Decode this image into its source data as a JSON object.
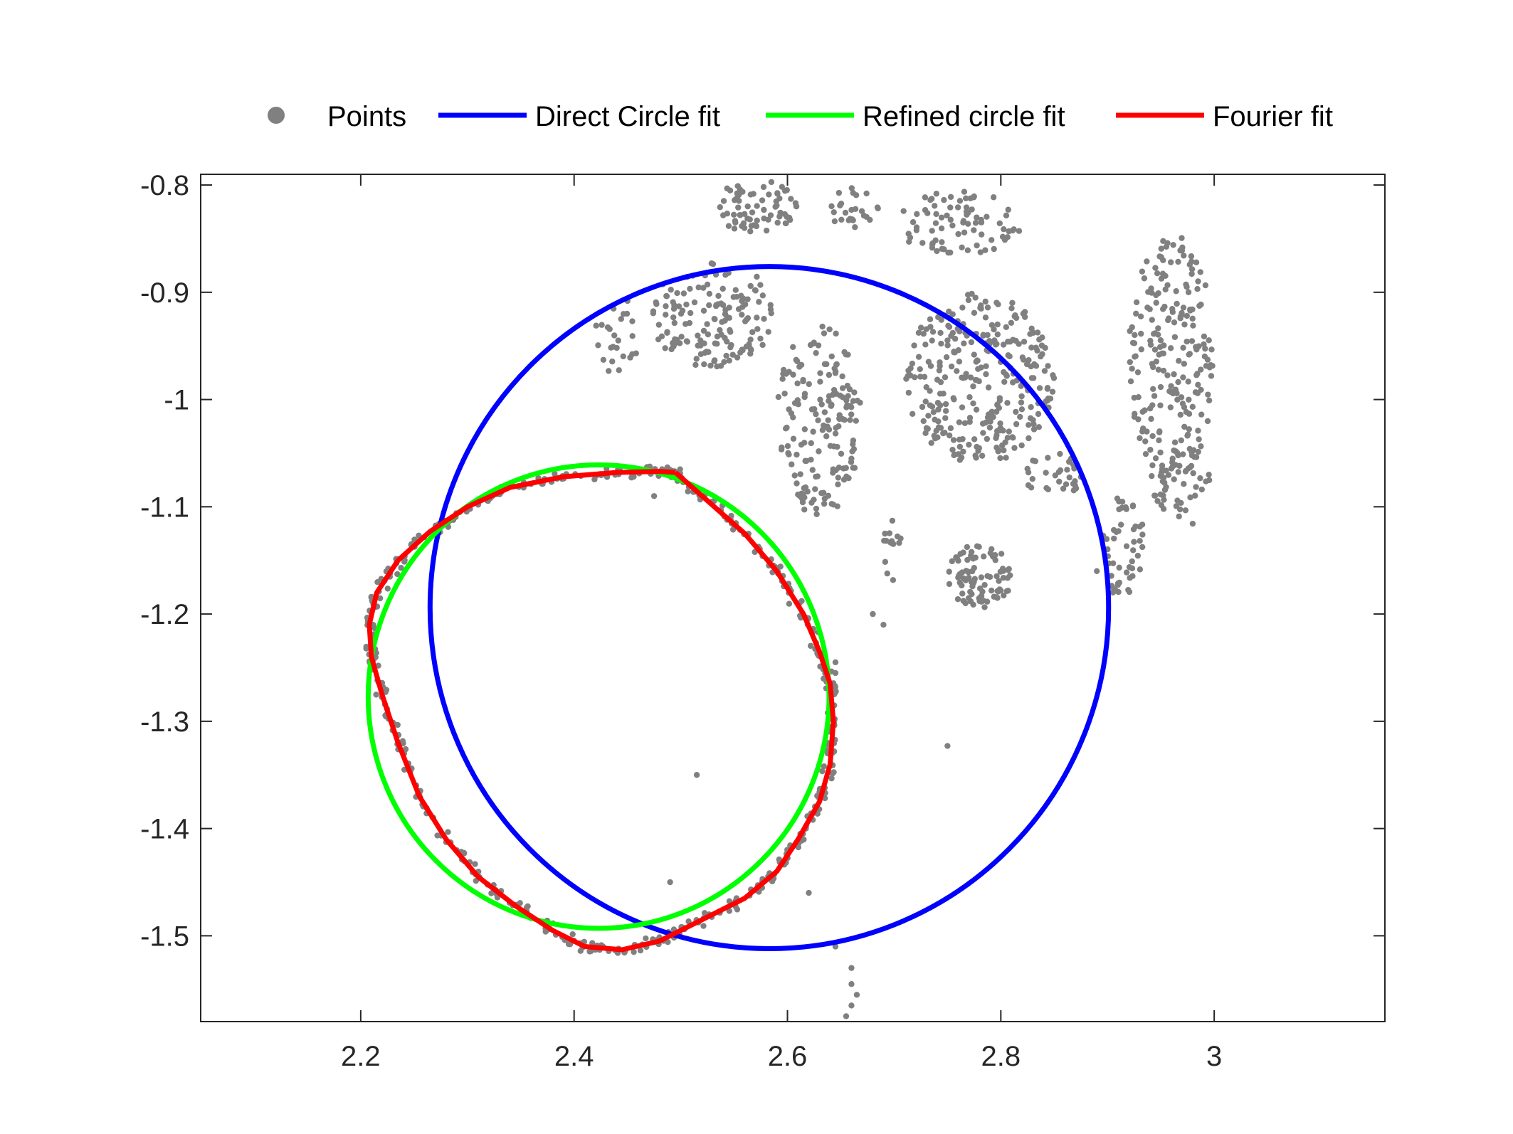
{
  "chart_data": {
    "type": "scatter",
    "xlim": [
      2.05,
      3.16
    ],
    "ylim": [
      -1.58,
      -0.79
    ],
    "x_ticks": [
      2.2,
      2.4,
      2.6,
      2.8,
      3.0
    ],
    "x_tick_labels": [
      "2.2",
      "2.4",
      "2.6",
      "2.8",
      "3"
    ],
    "y_ticks": [
      -0.8,
      -0.9,
      -1.0,
      -1.1,
      -1.2,
      -1.3,
      -1.4,
      -1.5
    ],
    "y_tick_labels": [
      "-0.8",
      "-0.9",
      "-1",
      "-1.1",
      "-1.2",
      "-1.3",
      "-1.4",
      "-1.5"
    ],
    "grid": false,
    "legend_position": "top",
    "legend": [
      {
        "name": "Points",
        "kind": "marker",
        "color": "#808080"
      },
      {
        "name": "Direct Circle fit",
        "kind": "line",
        "color": "#0000ff"
      },
      {
        "name": "Refined circle fit",
        "kind": "line",
        "color": "#00ff00"
      },
      {
        "name": "Fourier fit",
        "kind": "line",
        "color": "#ff0000"
      }
    ],
    "circles": [
      {
        "series": "Direct Circle fit",
        "cx": 2.583,
        "cy": -1.194,
        "r": 0.318,
        "color": "#0000ff"
      },
      {
        "series": "Refined circle fit",
        "cx": 2.423,
        "cy": -1.277,
        "r": 0.216,
        "color": "#00ff00"
      }
    ],
    "fourier_fit": {
      "series": "Fourier fit",
      "color": "#ff0000",
      "x": [
        2.495,
        2.52,
        2.56,
        2.59,
        2.615,
        2.63,
        2.64,
        2.643,
        2.64,
        2.63,
        2.61,
        2.59,
        2.56,
        2.52,
        2.48,
        2.445,
        2.41,
        2.38,
        2.345,
        2.31,
        2.28,
        2.255,
        2.235,
        2.22,
        2.21,
        2.208,
        2.215,
        2.235,
        2.265,
        2.3,
        2.34,
        2.39,
        2.44,
        2.48,
        2.495
      ],
      "y": [
        -1.068,
        -1.09,
        -1.125,
        -1.16,
        -1.2,
        -1.235,
        -1.265,
        -1.3,
        -1.34,
        -1.375,
        -1.41,
        -1.44,
        -1.465,
        -1.485,
        -1.505,
        -1.513,
        -1.51,
        -1.495,
        -1.472,
        -1.445,
        -1.41,
        -1.37,
        -1.32,
        -1.275,
        -1.24,
        -1.21,
        -1.18,
        -1.15,
        -1.123,
        -1.1,
        -1.082,
        -1.072,
        -1.068,
        -1.067,
        -1.068
      ]
    },
    "point_clusters": [
      {
        "cx": 2.57,
        "cy": -0.82,
        "rx": 0.04,
        "ry": 0.025,
        "n": 70
      },
      {
        "cx": 2.66,
        "cy": -0.82,
        "rx": 0.025,
        "ry": 0.02,
        "n": 25
      },
      {
        "cx": 2.76,
        "cy": -0.835,
        "rx": 0.06,
        "ry": 0.03,
        "n": 80
      },
      {
        "cx": 2.53,
        "cy": -0.92,
        "rx": 0.06,
        "ry": 0.05,
        "n": 150
      },
      {
        "cx": 2.44,
        "cy": -0.94,
        "rx": 0.02,
        "ry": 0.04,
        "n": 25
      },
      {
        "cx": 2.63,
        "cy": -1.02,
        "rx": 0.04,
        "ry": 0.09,
        "n": 170
      },
      {
        "cx": 2.78,
        "cy": -0.98,
        "rx": 0.07,
        "ry": 0.08,
        "n": 300
      },
      {
        "cx": 2.85,
        "cy": -1.07,
        "rx": 0.03,
        "ry": 0.02,
        "n": 30
      },
      {
        "cx": 2.96,
        "cy": -0.96,
        "rx": 0.04,
        "ry": 0.12,
        "n": 220
      },
      {
        "cx": 2.97,
        "cy": -1.08,
        "rx": 0.03,
        "ry": 0.04,
        "n": 40
      },
      {
        "cx": 2.915,
        "cy": -1.14,
        "rx": 0.02,
        "ry": 0.05,
        "n": 50
      },
      {
        "cx": 2.78,
        "cy": -1.165,
        "rx": 0.03,
        "ry": 0.03,
        "n": 90
      },
      {
        "cx": 2.7,
        "cy": -1.14,
        "rx": 0.01,
        "ry": 0.03,
        "n": 15
      }
    ],
    "scattered_points": {
      "x": [
        2.645,
        2.66,
        2.66,
        2.665,
        2.66,
        2.655,
        2.75,
        2.69,
        2.68,
        2.645,
        2.645,
        2.62,
        2.89,
        2.905,
        2.515,
        2.475,
        2.49
      ],
      "y": [
        -1.51,
        -1.53,
        -1.545,
        -1.555,
        -1.565,
        -1.575,
        -1.323,
        -1.21,
        -1.2,
        -1.245,
        -1.255,
        -1.46,
        -1.16,
        -1.18,
        -1.35,
        -1.09,
        -1.45
      ]
    }
  }
}
